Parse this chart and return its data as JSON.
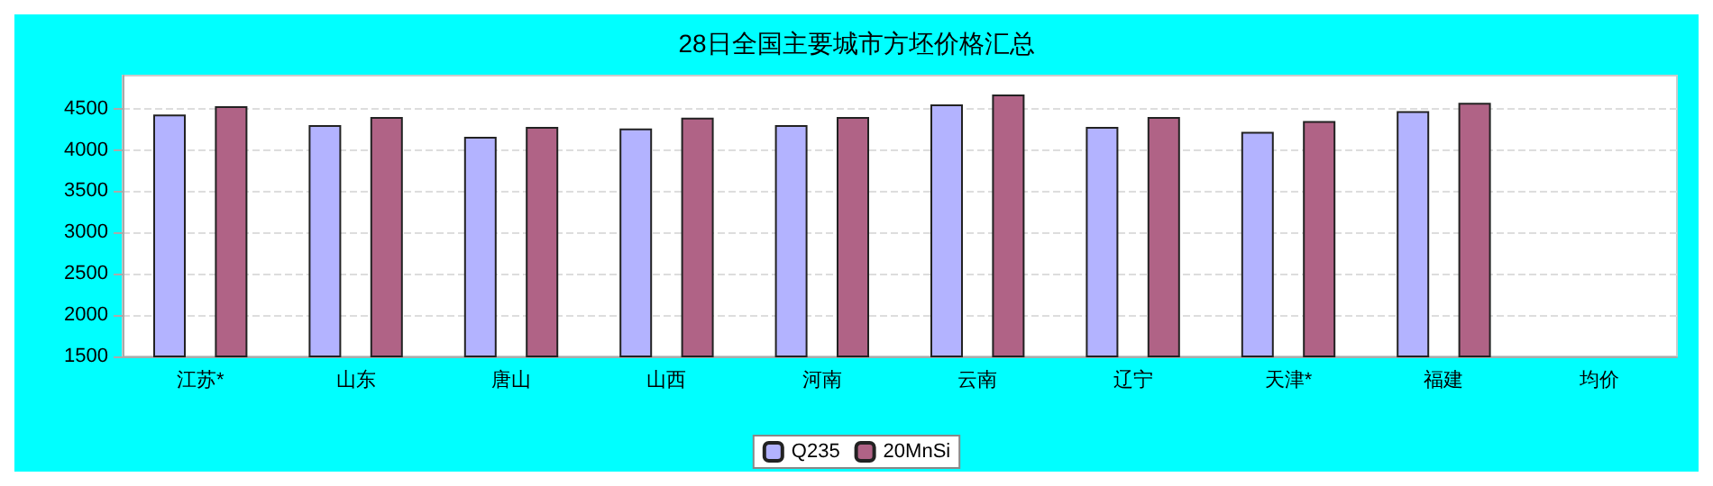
{
  "chart_data": {
    "type": "bar",
    "title": "28日全国主要城市方坯价格汇总",
    "categories": [
      "江苏*",
      "山东",
      "唐山",
      "山西",
      "河南",
      "云南",
      "辽宁",
      "天津*",
      "福建",
      "均价"
    ],
    "series": [
      {
        "name": "Q235",
        "color": "#b3b3ff",
        "values": [
          4430,
          4300,
          4160,
          4260,
          4300,
          4550,
          4280,
          4220,
          4470,
          null
        ]
      },
      {
        "name": "20MnSi",
        "color": "#b06386",
        "values": [
          4530,
          4400,
          4280,
          4390,
          4400,
          4670,
          4400,
          4350,
          4570,
          null
        ]
      }
    ],
    "ylim": [
      1500,
      4900
    ],
    "yticks": [
      1500,
      2000,
      2500,
      3000,
      3500,
      4000,
      4500
    ],
    "grid": "y",
    "legend": "bottom"
  }
}
